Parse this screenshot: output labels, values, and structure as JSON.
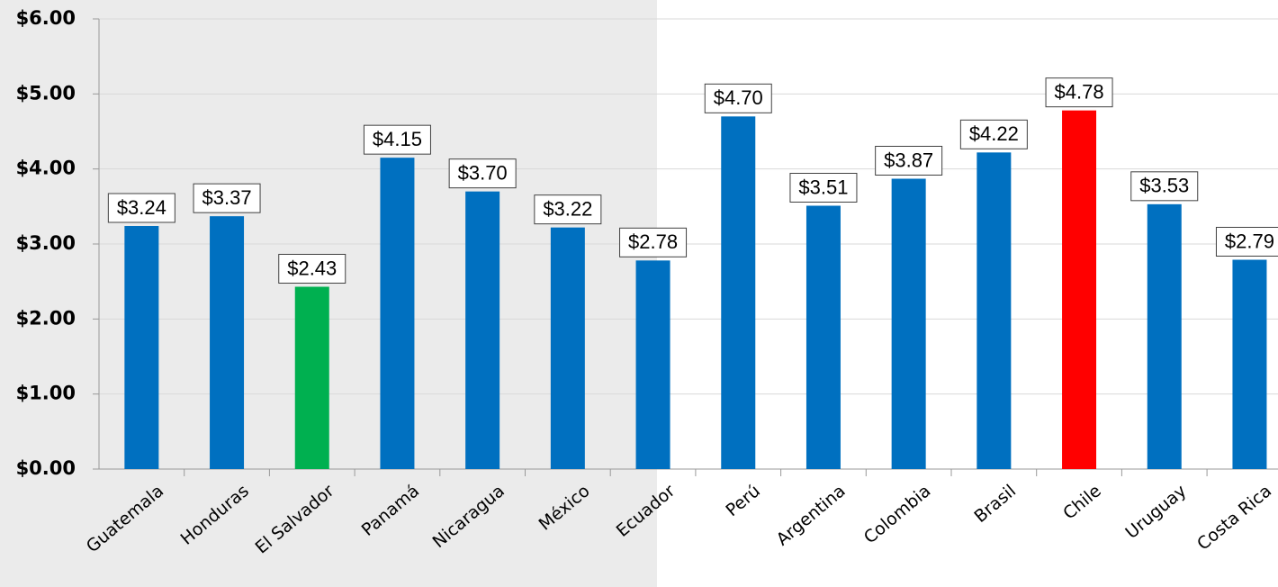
{
  "chart_data": {
    "type": "bar",
    "categories": [
      "Guatemala",
      "Honduras",
      "El Salvador",
      "Panamá",
      "Nicaragua",
      "México",
      "Ecuador",
      "Perú",
      "Argentina",
      "Colombia",
      "Brasil",
      "Chile",
      "Uruguay",
      "Costa Rica"
    ],
    "values": [
      3.24,
      3.37,
      2.43,
      4.15,
      3.7,
      3.22,
      2.78,
      4.7,
      3.51,
      3.87,
      4.22,
      4.78,
      3.53,
      2.79
    ],
    "value_labels": [
      "$3.24",
      "$3.37",
      "$2.43",
      "$4.15",
      "$3.70",
      "$3.22",
      "$2.78",
      "$4.70",
      "$3.51",
      "$3.87",
      "$4.22",
      "$4.78",
      "$3.53",
      "$2.79"
    ],
    "colors": [
      "#0070c0",
      "#0070c0",
      "#00b050",
      "#0070c0",
      "#0070c0",
      "#0070c0",
      "#0070c0",
      "#0070c0",
      "#0070c0",
      "#0070c0",
      "#0070c0",
      "#ff0000",
      "#0070c0",
      "#0070c0"
    ],
    "ylim": [
      0,
      6
    ],
    "yticks": [
      {
        "value": 0,
        "label": "$0.00"
      },
      {
        "value": 1,
        "label": "$1.00"
      },
      {
        "value": 2,
        "label": "$2.00"
      },
      {
        "value": 3,
        "label": "$3.00"
      },
      {
        "value": 4,
        "label": "$4.00"
      },
      {
        "value": 5,
        "label": "$5.00"
      },
      {
        "value": 6,
        "label": "$6.00"
      }
    ],
    "grid": true
  }
}
